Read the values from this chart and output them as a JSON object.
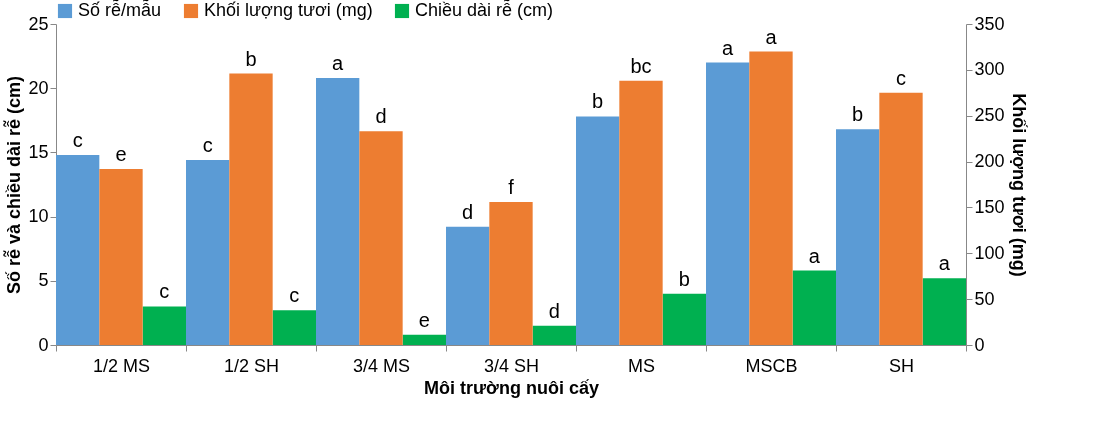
{
  "chart_data": {
    "type": "bar",
    "xlabel": "Môi trường nuôi cấy",
    "ylabel": "Số rễ và chiều dài rễ (cm)",
    "y2label": "Khối lượng tươi (mg)",
    "categories": [
      "1/2 MS",
      "1/2 SH",
      "3/4 MS",
      "3/4 SH",
      "MS",
      "MSCB",
      "SH"
    ],
    "series": [
      {
        "name": "Số rễ/mẫu",
        "color": "#5b9bd5",
        "values": [
          14.8,
          14.4,
          20.8,
          9.2,
          17.8,
          22.0,
          16.8
        ],
        "value_labels": [
          "c",
          "c",
          "a",
          "d",
          "b",
          "a",
          "b"
        ]
      },
      {
        "name": "Khối lượng tươi (mg)",
        "color": "#ed7d31",
        "axis": "y2",
        "values": [
          192,
          296,
          233,
          156,
          288,
          320,
          275
        ],
        "value_labels": [
          "e",
          "b",
          "d",
          "f",
          "bc",
          "a",
          "c"
        ]
      },
      {
        "name": "Chiều dài rễ (cm)",
        "color": "#00b050",
        "values": [
          3.0,
          2.7,
          0.8,
          1.5,
          4.0,
          5.8,
          5.2
        ],
        "value_labels": [
          "c",
          "c",
          "e",
          "d",
          "b",
          "a",
          "a"
        ]
      }
    ],
    "ylim": [
      0,
      25
    ],
    "yticks": [
      0,
      5,
      10,
      15,
      20,
      25
    ],
    "y2lim": [
      0,
      350
    ],
    "y2ticks": [
      0,
      50,
      100,
      150,
      200,
      250,
      300,
      350
    ],
    "legend": "top"
  }
}
